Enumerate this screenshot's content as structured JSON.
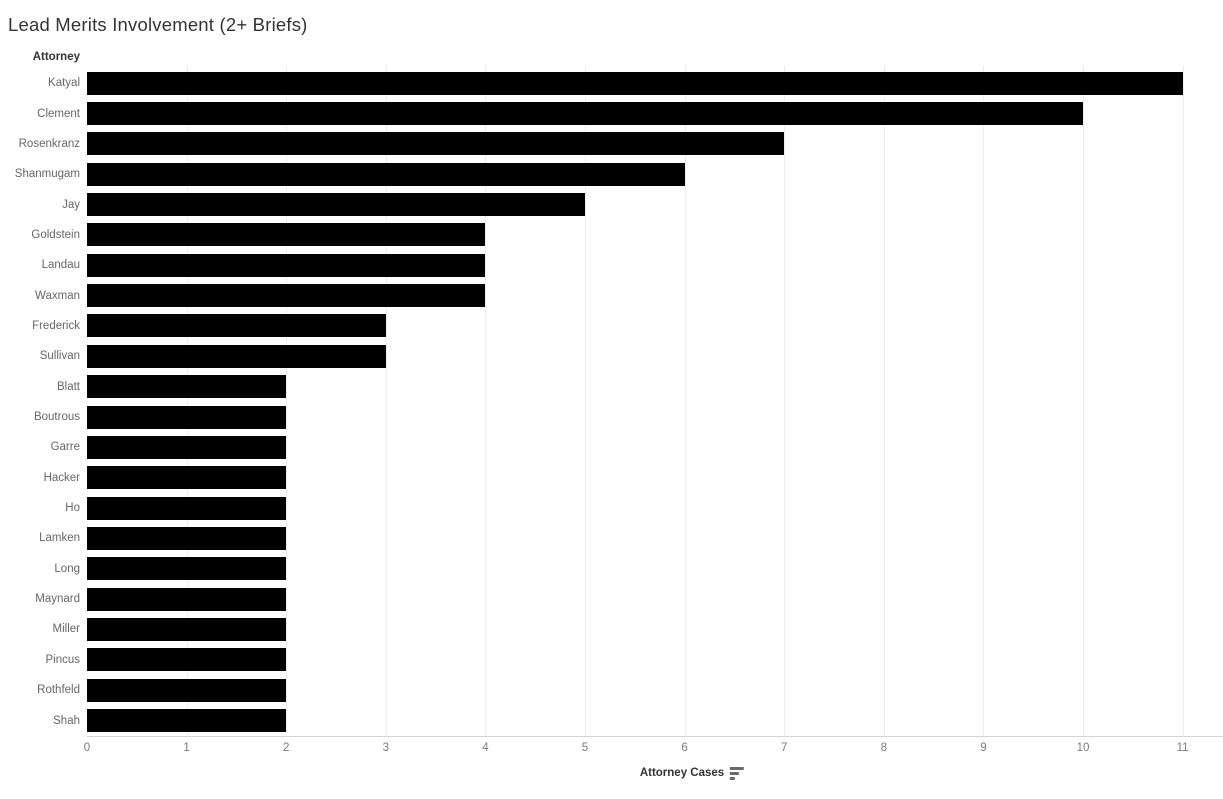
{
  "title": "Lead Merits Involvement (2+ Briefs)",
  "row_header": "Attorney",
  "x_axis": {
    "title": "Attorney Cases",
    "sort_icon": "sort-descending-icon",
    "ticks": [
      "0",
      "1",
      "2",
      "3",
      "4",
      "5",
      "6",
      "7",
      "8",
      "9",
      "10",
      "11"
    ]
  },
  "colors": {
    "bar": "#000000",
    "gridline": "#ededed",
    "axis_line": "#d4d4d4",
    "title_text": "#333333",
    "label_text": "#666666",
    "tick_text": "#7a7a7a",
    "background": "#ffffff"
  },
  "chart_data": {
    "type": "bar",
    "orientation": "horizontal",
    "title": "Lead Merits Involvement (2+ Briefs)",
    "categories": [
      "Katyal",
      "Clement",
      "Rosenkranz",
      "Shanmugam",
      "Jay",
      "Goldstein",
      "Landau",
      "Waxman",
      "Frederick",
      "Sullivan",
      "Blatt",
      "Boutrous",
      "Garre",
      "Hacker",
      "Ho",
      "Lamken",
      "Long",
      "Maynard",
      "Miller",
      "Pincus",
      "Rothfeld",
      "Shah"
    ],
    "values": [
      11,
      10,
      7,
      6,
      5,
      4,
      4,
      4,
      3,
      3,
      2,
      2,
      2,
      2,
      2,
      2,
      2,
      2,
      2,
      2,
      2,
      2
    ],
    "xlabel": "Attorney Cases",
    "ylabel": "Attorney",
    "xlim": [
      0,
      11
    ],
    "x_tick_interval": 1,
    "grid": true,
    "legend": false,
    "sort": "descending",
    "bar_color": "#000000"
  }
}
